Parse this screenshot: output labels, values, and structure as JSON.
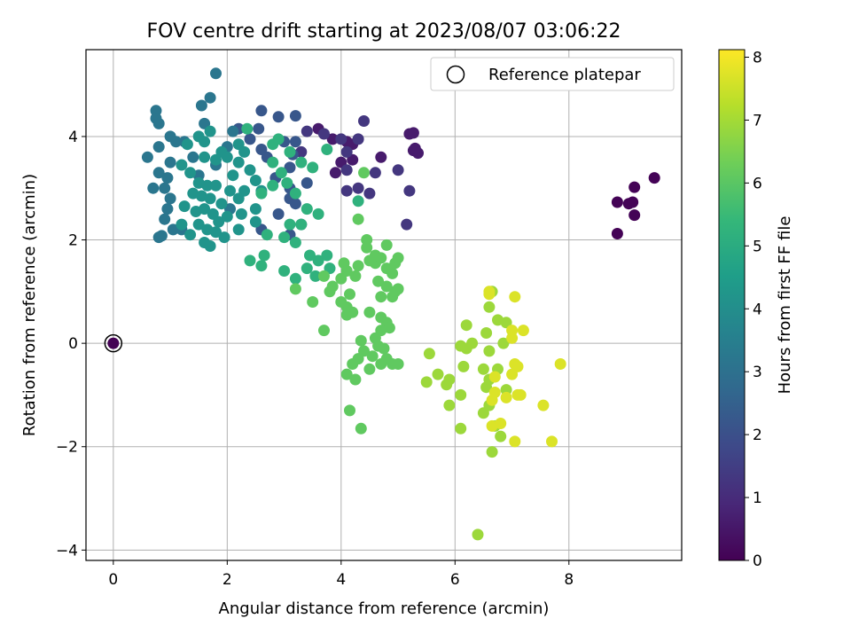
{
  "chart_data": {
    "type": "scatter",
    "title": "FOV centre drift starting at 2023/08/07 03:06:22",
    "xlabel": "Angular distance from reference (arcmin)",
    "ylabel": "Rotation from reference (arcmin)",
    "xlim": [
      -0.48,
      9.98
    ],
    "ylim": [
      -4.2,
      5.68
    ],
    "xticks": [
      0,
      2,
      4,
      6,
      8
    ],
    "yticks": [
      -4,
      -2,
      0,
      2,
      4
    ],
    "xtick_labels": [
      "0",
      "2",
      "4",
      "6",
      "8"
    ],
    "ytick_labels": [
      "−4",
      "−2",
      "0",
      "2",
      "4"
    ],
    "grid": true,
    "legend": {
      "position": "upper right",
      "entries": [
        "Reference platepar"
      ]
    },
    "colorbar": {
      "label": "Hours from first FF file",
      "range": [
        0,
        8.12
      ],
      "ticks": [
        0,
        1,
        2,
        3,
        4,
        5,
        6,
        7,
        8
      ],
      "tick_labels": [
        "0",
        "1",
        "2",
        "3",
        "4",
        "5",
        "6",
        "7",
        "8"
      ],
      "colormap": "viridis",
      "stops": [
        "#440154",
        "#482878",
        "#3e4989",
        "#31688e",
        "#26828e",
        "#1f9e89",
        "#35b779",
        "#6ece58",
        "#b5de2b",
        "#fde725"
      ]
    },
    "reference_point": {
      "x": 0,
      "y": 0,
      "c": 0
    },
    "point_groups": [
      {
        "c": 0.05,
        "points": [
          [
            8.85,
            2.73
          ],
          [
            9.05,
            2.7
          ],
          [
            9.12,
            2.73
          ],
          [
            9.15,
            3.02
          ],
          [
            9.5,
            3.2
          ],
          [
            9.15,
            2.48
          ],
          [
            8.85,
            2.12
          ]
        ]
      },
      {
        "c": 0.6,
        "points": [
          [
            5.2,
            4.05
          ],
          [
            5.27,
            4.07
          ],
          [
            5.27,
            3.73
          ],
          [
            5.35,
            3.68
          ],
          [
            5.3,
            3.77
          ],
          [
            4.7,
            3.6
          ],
          [
            3.85,
            3.95
          ],
          [
            3.6,
            4.15
          ],
          [
            4.1,
            3.9
          ],
          [
            4.2,
            3.85
          ],
          [
            4.0,
            3.5
          ],
          [
            4.2,
            3.55
          ],
          [
            3.9,
            3.3
          ]
        ]
      },
      {
        "c": 1.3,
        "points": [
          [
            4.4,
            4.3
          ],
          [
            4.3,
            3.95
          ],
          [
            4.1,
            3.35
          ],
          [
            4.3,
            3.0
          ],
          [
            4.1,
            2.95
          ],
          [
            4.5,
            2.9
          ],
          [
            5.2,
            2.95
          ],
          [
            5.0,
            3.35
          ],
          [
            5.15,
            2.3
          ],
          [
            3.4,
            4.1
          ],
          [
            3.7,
            4.05
          ],
          [
            4.0,
            3.95
          ],
          [
            4.1,
            3.7
          ],
          [
            3.3,
            3.7
          ],
          [
            4.6,
            3.3
          ]
        ]
      },
      {
        "c": 2.2,
        "points": [
          [
            3.2,
            4.4
          ],
          [
            2.6,
            4.5
          ],
          [
            2.9,
            4.38
          ],
          [
            2.55,
            4.15
          ],
          [
            3.0,
            3.9
          ],
          [
            3.2,
            3.9
          ],
          [
            3.15,
            3.65
          ],
          [
            3.1,
            3.4
          ],
          [
            2.85,
            3.2
          ],
          [
            3.1,
            3.0
          ],
          [
            3.1,
            2.8
          ],
          [
            2.9,
            2.5
          ],
          [
            2.6,
            2.2
          ],
          [
            3.1,
            2.1
          ],
          [
            3.3,
            2.3
          ],
          [
            3.2,
            2.7
          ],
          [
            3.4,
            3.1
          ],
          [
            2.2,
            4.15
          ],
          [
            2.4,
            3.95
          ],
          [
            2.6,
            3.75
          ],
          [
            2.7,
            3.6
          ]
        ]
      },
      {
        "c": 3.2,
        "points": [
          [
            0.75,
            4.5
          ],
          [
            0.75,
            4.35
          ],
          [
            0.8,
            4.25
          ],
          [
            1.25,
            3.9
          ],
          [
            1.8,
            3.45
          ],
          [
            1.6,
            4.25
          ],
          [
            1.55,
            4.6
          ],
          [
            1.7,
            4.75
          ],
          [
            1.8,
            5.22
          ],
          [
            1.1,
            3.9
          ],
          [
            0.8,
            3.8
          ],
          [
            1.0,
            3.5
          ],
          [
            0.8,
            3.3
          ],
          [
            0.95,
            3.2
          ],
          [
            0.6,
            3.6
          ],
          [
            0.7,
            3.0
          ],
          [
            0.9,
            3.0
          ],
          [
            1.0,
            2.8
          ],
          [
            0.95,
            2.6
          ],
          [
            0.9,
            2.4
          ],
          [
            1.05,
            2.2
          ],
          [
            1.2,
            2.2
          ],
          [
            0.85,
            2.08
          ],
          [
            0.8,
            2.05
          ],
          [
            1.0,
            4.0
          ],
          [
            1.4,
            3.6
          ],
          [
            1.5,
            3.25
          ],
          [
            2.0,
            3.8
          ],
          [
            2.1,
            4.1
          ],
          [
            2.05,
            2.6
          ]
        ]
      },
      {
        "c": 4.2,
        "points": [
          [
            1.3,
            3.85
          ],
          [
            1.5,
            4.0
          ],
          [
            1.6,
            3.9
          ],
          [
            1.7,
            4.1
          ],
          [
            1.6,
            3.6
          ],
          [
            1.8,
            3.55
          ],
          [
            1.9,
            3.7
          ],
          [
            2.0,
            3.6
          ],
          [
            1.2,
            3.45
          ],
          [
            1.35,
            3.3
          ],
          [
            1.5,
            3.1
          ],
          [
            1.65,
            3.05
          ],
          [
            1.8,
            3.05
          ],
          [
            1.4,
            2.9
          ],
          [
            1.55,
            2.85
          ],
          [
            1.7,
            2.8
          ],
          [
            1.25,
            2.65
          ],
          [
            1.45,
            2.55
          ],
          [
            1.6,
            2.6
          ],
          [
            1.75,
            2.5
          ],
          [
            1.85,
            2.35
          ],
          [
            1.5,
            2.3
          ],
          [
            1.65,
            2.2
          ],
          [
            1.8,
            2.15
          ],
          [
            1.95,
            2.05
          ],
          [
            1.6,
            1.95
          ],
          [
            1.7,
            1.88
          ],
          [
            1.35,
            2.1
          ],
          [
            1.2,
            2.3
          ],
          [
            2.2,
            3.85
          ],
          [
            2.3,
            3.7
          ],
          [
            2.2,
            3.5
          ],
          [
            2.4,
            3.35
          ],
          [
            2.5,
            3.15
          ],
          [
            2.6,
            2.95
          ],
          [
            2.3,
            2.95
          ],
          [
            2.2,
            2.8
          ],
          [
            2.05,
            2.95
          ],
          [
            2.1,
            3.25
          ],
          [
            2.25,
            2.5
          ],
          [
            2.5,
            2.35
          ],
          [
            2.2,
            2.2
          ],
          [
            2.5,
            2.6
          ],
          [
            2.0,
            2.45
          ],
          [
            1.9,
            2.7
          ]
        ]
      },
      {
        "c": 5.2,
        "points": [
          [
            2.35,
            4.15
          ],
          [
            2.8,
            3.85
          ],
          [
            2.9,
            3.95
          ],
          [
            3.1,
            3.7
          ],
          [
            2.95,
            3.3
          ],
          [
            3.3,
            3.5
          ],
          [
            3.5,
            3.4
          ],
          [
            2.8,
            3.5
          ],
          [
            3.05,
            3.1
          ],
          [
            3.2,
            2.9
          ],
          [
            3.4,
            2.6
          ],
          [
            3.3,
            2.3
          ],
          [
            3.6,
            2.5
          ],
          [
            3.1,
            2.3
          ],
          [
            3.0,
            2.05
          ],
          [
            3.2,
            1.95
          ],
          [
            3.45,
            1.7
          ],
          [
            3.4,
            1.45
          ],
          [
            3.6,
            1.6
          ],
          [
            3.75,
            1.7
          ],
          [
            3.8,
            1.45
          ],
          [
            3.55,
            1.3
          ],
          [
            3.2,
            1.25
          ],
          [
            3.0,
            1.4
          ],
          [
            2.7,
            2.1
          ],
          [
            2.6,
            2.9
          ],
          [
            2.8,
            3.05
          ],
          [
            2.4,
            1.6
          ],
          [
            2.6,
            1.5
          ],
          [
            2.65,
            1.7
          ],
          [
            3.75,
            3.75
          ],
          [
            4.3,
            2.75
          ]
        ]
      },
      {
        "c": 6.1,
        "points": [
          [
            3.2,
            1.05
          ],
          [
            3.5,
            0.8
          ],
          [
            3.7,
            1.3
          ],
          [
            3.85,
            1.1
          ],
          [
            3.8,
            1.0
          ],
          [
            4.0,
            1.25
          ],
          [
            4.05,
            1.55
          ],
          [
            4.1,
            1.4
          ],
          [
            4.25,
            1.3
          ],
          [
            4.3,
            1.5
          ],
          [
            4.45,
            1.85
          ],
          [
            4.45,
            2.0
          ],
          [
            4.5,
            1.6
          ],
          [
            4.6,
            1.55
          ],
          [
            4.6,
            1.7
          ],
          [
            4.7,
            1.65
          ],
          [
            4.8,
            1.9
          ],
          [
            4.8,
            1.45
          ],
          [
            4.9,
            1.35
          ],
          [
            4.95,
            1.55
          ],
          [
            5.0,
            1.65
          ],
          [
            4.65,
            1.2
          ],
          [
            4.8,
            1.1
          ],
          [
            4.9,
            0.9
          ],
          [
            4.95,
            1.0
          ],
          [
            5.0,
            1.05
          ],
          [
            4.7,
            0.9
          ],
          [
            4.5,
            0.6
          ],
          [
            4.7,
            0.5
          ],
          [
            4.8,
            0.4
          ],
          [
            4.85,
            0.3
          ],
          [
            4.7,
            0.25
          ],
          [
            4.6,
            0.1
          ],
          [
            4.65,
            -0.05
          ],
          [
            4.75,
            -0.1
          ],
          [
            4.4,
            -0.15
          ],
          [
            4.55,
            -0.25
          ],
          [
            4.3,
            -0.3
          ],
          [
            4.8,
            -0.3
          ],
          [
            4.9,
            -0.4
          ],
          [
            5.0,
            -0.4
          ],
          [
            4.7,
            -0.4
          ],
          [
            4.5,
            -0.5
          ],
          [
            4.1,
            0.55
          ],
          [
            4.2,
            0.6
          ],
          [
            4.1,
            0.7
          ],
          [
            4.0,
            0.8
          ],
          [
            4.35,
            0.05
          ],
          [
            4.1,
            -0.6
          ],
          [
            4.25,
            -0.7
          ],
          [
            4.2,
            -0.4
          ],
          [
            4.15,
            -1.3
          ],
          [
            4.35,
            -1.65
          ],
          [
            3.7,
            0.25
          ],
          [
            4.15,
            0.95
          ],
          [
            4.3,
            2.4
          ],
          [
            4.4,
            3.3
          ]
        ]
      },
      {
        "c": 6.9,
        "points": [
          [
            5.55,
            -0.2
          ],
          [
            5.5,
            -0.75
          ],
          [
            5.7,
            -0.6
          ],
          [
            5.85,
            -0.8
          ],
          [
            5.9,
            -0.7
          ],
          [
            5.9,
            -1.2
          ],
          [
            6.1,
            -1.0
          ],
          [
            6.1,
            -0.05
          ],
          [
            6.2,
            -0.1
          ],
          [
            6.3,
            0.0
          ],
          [
            6.2,
            0.35
          ],
          [
            6.15,
            -0.45
          ],
          [
            6.5,
            -0.5
          ],
          [
            6.55,
            -0.85
          ],
          [
            6.6,
            -0.7
          ],
          [
            6.5,
            -1.35
          ],
          [
            6.6,
            -1.2
          ],
          [
            6.7,
            -1.6
          ],
          [
            6.8,
            -1.8
          ],
          [
            6.65,
            -2.1
          ],
          [
            6.1,
            -1.65
          ],
          [
            6.4,
            -3.7
          ],
          [
            6.55,
            0.2
          ],
          [
            6.6,
            0.7
          ],
          [
            6.65,
            1.0
          ],
          [
            6.75,
            0.45
          ],
          [
            6.85,
            0.0
          ],
          [
            6.9,
            0.4
          ],
          [
            6.6,
            -0.15
          ],
          [
            6.75,
            -0.5
          ],
          [
            6.9,
            -0.9
          ]
        ]
      },
      {
        "c": 7.7,
        "points": [
          [
            6.6,
            1.0
          ],
          [
            6.6,
            0.95
          ],
          [
            7.05,
            0.9
          ],
          [
            7.0,
            0.25
          ],
          [
            7.2,
            0.25
          ],
          [
            7.0,
            0.1
          ],
          [
            7.05,
            -0.4
          ],
          [
            7.1,
            -0.45
          ],
          [
            7.0,
            -0.6
          ],
          [
            6.7,
            -0.95
          ],
          [
            7.1,
            -1.0
          ],
          [
            7.15,
            -1.0
          ],
          [
            6.9,
            -1.05
          ],
          [
            6.8,
            -1.55
          ],
          [
            6.65,
            -1.6
          ],
          [
            7.05,
            -1.9
          ],
          [
            7.55,
            -1.2
          ],
          [
            7.7,
            -1.9
          ],
          [
            7.85,
            -0.4
          ],
          [
            6.7,
            -0.65
          ],
          [
            6.65,
            -1.1
          ]
        ]
      }
    ]
  }
}
